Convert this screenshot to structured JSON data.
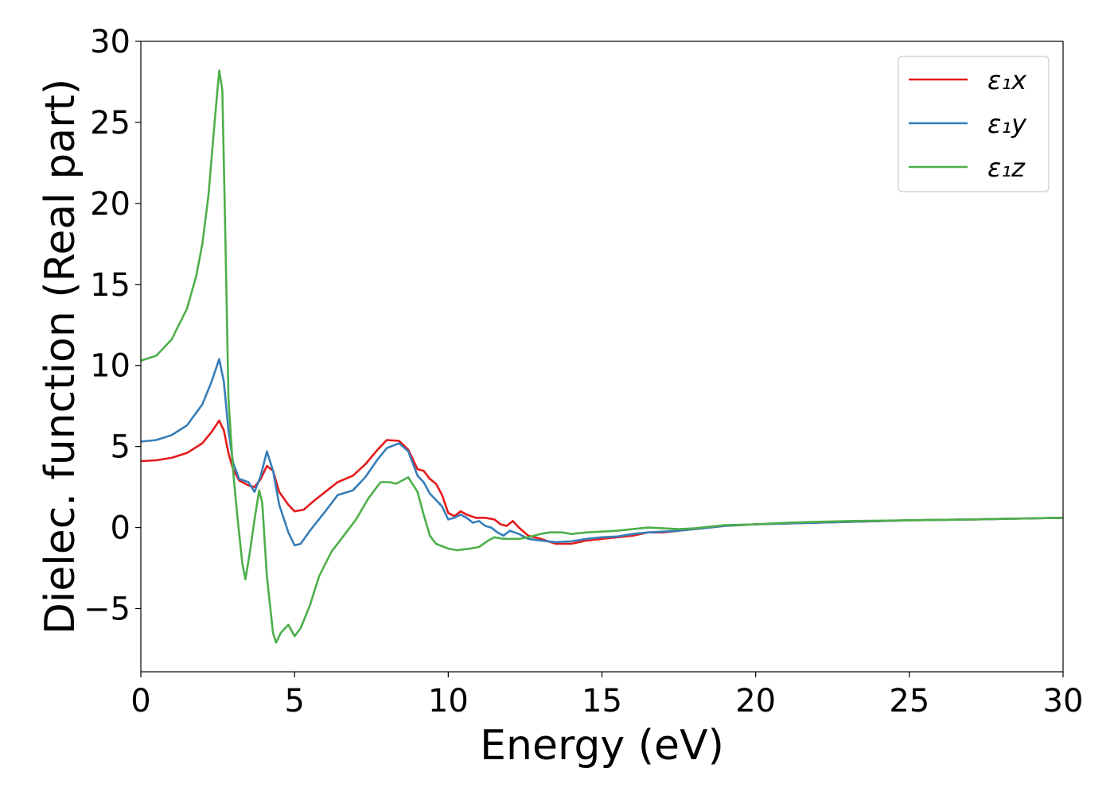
{
  "chart_data": {
    "type": "line",
    "title": "",
    "xlabel": "Energy (eV)",
    "ylabel": "Dielec. function (Real part)",
    "xlim": [
      0,
      30
    ],
    "ylim": [
      -8.9,
      30
    ],
    "x_ticks": [
      0,
      5,
      10,
      15,
      20,
      25,
      30
    ],
    "x_tick_labels": [
      "0",
      "5",
      "10",
      "15",
      "20",
      "25",
      "30"
    ],
    "y_ticks": [
      -5,
      0,
      5,
      10,
      15,
      20,
      25,
      30
    ],
    "y_tick_labels": [
      "−5",
      "0",
      "5",
      "10",
      "15",
      "20",
      "25",
      "30"
    ],
    "grid": false,
    "legend_position": "top-right",
    "series": [
      {
        "name": "ε₁x",
        "color": "#e41a1c",
        "points": [
          [
            0,
            4.1
          ],
          [
            0.5,
            4.15
          ],
          [
            1.0,
            4.3
          ],
          [
            1.5,
            4.6
          ],
          [
            2.0,
            5.2
          ],
          [
            2.3,
            5.9
          ],
          [
            2.55,
            6.6
          ],
          [
            2.7,
            6.0
          ],
          [
            2.85,
            4.6
          ],
          [
            3.0,
            3.6
          ],
          [
            3.2,
            2.9
          ],
          [
            3.5,
            2.6
          ],
          [
            3.7,
            2.5
          ],
          [
            3.9,
            3.0
          ],
          [
            4.1,
            3.8
          ],
          [
            4.3,
            3.5
          ],
          [
            4.5,
            2.2
          ],
          [
            4.8,
            1.4
          ],
          [
            5.0,
            1.0
          ],
          [
            5.3,
            1.1
          ],
          [
            5.6,
            1.6
          ],
          [
            6.0,
            2.2
          ],
          [
            6.4,
            2.8
          ],
          [
            6.9,
            3.2
          ],
          [
            7.3,
            3.9
          ],
          [
            7.7,
            4.8
          ],
          [
            8.0,
            5.4
          ],
          [
            8.4,
            5.35
          ],
          [
            8.7,
            4.8
          ],
          [
            9.0,
            3.6
          ],
          [
            9.2,
            3.5
          ],
          [
            9.4,
            3.0
          ],
          [
            9.6,
            2.7
          ],
          [
            9.8,
            2.0
          ],
          [
            10.0,
            0.9
          ],
          [
            10.2,
            0.7
          ],
          [
            10.4,
            1.0
          ],
          [
            10.6,
            0.8
          ],
          [
            10.9,
            0.6
          ],
          [
            11.2,
            0.6
          ],
          [
            11.5,
            0.5
          ],
          [
            11.7,
            0.2
          ],
          [
            11.9,
            0.1
          ],
          [
            12.1,
            0.4
          ],
          [
            12.3,
            0.0
          ],
          [
            12.6,
            -0.5
          ],
          [
            13.0,
            -0.7
          ],
          [
            13.5,
            -1.0
          ],
          [
            14.0,
            -1.0
          ],
          [
            14.5,
            -0.8
          ],
          [
            15.0,
            -0.7
          ],
          [
            15.5,
            -0.6
          ],
          [
            16.0,
            -0.5
          ],
          [
            16.5,
            -0.3
          ],
          [
            17.0,
            -0.3
          ],
          [
            17.5,
            -0.2
          ],
          [
            18.0,
            -0.1
          ],
          [
            18.5,
            0.0
          ],
          [
            19.0,
            0.1
          ],
          [
            20.0,
            0.2
          ],
          [
            21.0,
            0.25
          ],
          [
            22.0,
            0.3
          ],
          [
            23.0,
            0.35
          ],
          [
            25.0,
            0.45
          ],
          [
            27.0,
            0.5
          ],
          [
            30.0,
            0.6
          ]
        ]
      },
      {
        "name": "ε₁y",
        "color": "#377eb8",
        "points": [
          [
            0,
            5.3
          ],
          [
            0.5,
            5.4
          ],
          [
            1.0,
            5.7
          ],
          [
            1.5,
            6.3
          ],
          [
            2.0,
            7.6
          ],
          [
            2.3,
            9.0
          ],
          [
            2.55,
            10.4
          ],
          [
            2.7,
            9.0
          ],
          [
            2.85,
            6.0
          ],
          [
            3.0,
            4.0
          ],
          [
            3.2,
            3.0
          ],
          [
            3.5,
            2.8
          ],
          [
            3.7,
            2.2
          ],
          [
            3.9,
            3.2
          ],
          [
            4.1,
            4.7
          ],
          [
            4.3,
            3.5
          ],
          [
            4.5,
            1.4
          ],
          [
            4.8,
            -0.3
          ],
          [
            5.0,
            -1.1
          ],
          [
            5.2,
            -1.0
          ],
          [
            5.5,
            -0.2
          ],
          [
            6.0,
            1.0
          ],
          [
            6.4,
            2.0
          ],
          [
            6.9,
            2.3
          ],
          [
            7.3,
            3.1
          ],
          [
            7.7,
            4.2
          ],
          [
            8.0,
            4.9
          ],
          [
            8.4,
            5.2
          ],
          [
            8.7,
            4.7
          ],
          [
            9.0,
            3.2
          ],
          [
            9.2,
            2.8
          ],
          [
            9.4,
            2.1
          ],
          [
            9.6,
            1.7
          ],
          [
            9.8,
            1.3
          ],
          [
            10.0,
            0.5
          ],
          [
            10.2,
            0.6
          ],
          [
            10.4,
            0.8
          ],
          [
            10.6,
            0.6
          ],
          [
            10.8,
            0.3
          ],
          [
            11.0,
            0.4
          ],
          [
            11.2,
            0.1
          ],
          [
            11.4,
            0.0
          ],
          [
            11.6,
            -0.3
          ],
          [
            11.8,
            -0.5
          ],
          [
            12.0,
            -0.2
          ],
          [
            12.3,
            -0.4
          ],
          [
            12.6,
            -0.7
          ],
          [
            13.0,
            -0.8
          ],
          [
            13.5,
            -0.9
          ],
          [
            14.0,
            -0.85
          ],
          [
            14.5,
            -0.7
          ],
          [
            15.0,
            -0.6
          ],
          [
            15.5,
            -0.55
          ],
          [
            16.0,
            -0.4
          ],
          [
            16.5,
            -0.3
          ],
          [
            17.0,
            -0.25
          ],
          [
            17.5,
            -0.2
          ],
          [
            18.0,
            -0.1
          ],
          [
            18.5,
            0.0
          ],
          [
            19.0,
            0.1
          ],
          [
            20.0,
            0.2
          ],
          [
            21.0,
            0.25
          ],
          [
            22.0,
            0.3
          ],
          [
            23.0,
            0.35
          ],
          [
            25.0,
            0.45
          ],
          [
            27.0,
            0.5
          ],
          [
            30.0,
            0.6
          ]
        ]
      },
      {
        "name": "ε₁z",
        "color": "#4daf4a",
        "points": [
          [
            0,
            10.3
          ],
          [
            0.5,
            10.6
          ],
          [
            1.0,
            11.6
          ],
          [
            1.5,
            13.5
          ],
          [
            1.8,
            15.5
          ],
          [
            2.0,
            17.5
          ],
          [
            2.2,
            20.5
          ],
          [
            2.4,
            25.0
          ],
          [
            2.55,
            28.2
          ],
          [
            2.65,
            27.0
          ],
          [
            2.75,
            18.0
          ],
          [
            2.85,
            8.0
          ],
          [
            3.0,
            3.5
          ],
          [
            3.15,
            0.5
          ],
          [
            3.3,
            -2.2
          ],
          [
            3.4,
            -3.2
          ],
          [
            3.55,
            -1.5
          ],
          [
            3.7,
            0.5
          ],
          [
            3.85,
            2.3
          ],
          [
            3.95,
            1.5
          ],
          [
            4.1,
            -3.0
          ],
          [
            4.3,
            -6.5
          ],
          [
            4.4,
            -7.1
          ],
          [
            4.55,
            -6.5
          ],
          [
            4.8,
            -6.0
          ],
          [
            5.0,
            -6.7
          ],
          [
            5.2,
            -6.2
          ],
          [
            5.5,
            -4.8
          ],
          [
            5.8,
            -3.0
          ],
          [
            6.2,
            -1.5
          ],
          [
            6.6,
            -0.5
          ],
          [
            7.0,
            0.5
          ],
          [
            7.4,
            1.8
          ],
          [
            7.8,
            2.8
          ],
          [
            8.1,
            2.8
          ],
          [
            8.3,
            2.7
          ],
          [
            8.7,
            3.1
          ],
          [
            9.0,
            2.2
          ],
          [
            9.2,
            0.8
          ],
          [
            9.4,
            -0.5
          ],
          [
            9.6,
            -1.0
          ],
          [
            10.0,
            -1.3
          ],
          [
            10.3,
            -1.4
          ],
          [
            10.7,
            -1.3
          ],
          [
            11.0,
            -1.2
          ],
          [
            11.3,
            -0.8
          ],
          [
            11.5,
            -0.6
          ],
          [
            11.8,
            -0.7
          ],
          [
            12.3,
            -0.7
          ],
          [
            12.6,
            -0.6
          ],
          [
            13.0,
            -0.4
          ],
          [
            13.3,
            -0.3
          ],
          [
            13.7,
            -0.3
          ],
          [
            14.0,
            -0.4
          ],
          [
            14.5,
            -0.3
          ],
          [
            15.0,
            -0.25
          ],
          [
            15.5,
            -0.2
          ],
          [
            16.0,
            -0.1
          ],
          [
            16.5,
            0.0
          ],
          [
            17.0,
            -0.05
          ],
          [
            17.5,
            -0.1
          ],
          [
            18.0,
            -0.05
          ],
          [
            18.5,
            0.05
          ],
          [
            19.0,
            0.15
          ],
          [
            20.0,
            0.2
          ],
          [
            21.0,
            0.3
          ],
          [
            22.0,
            0.35
          ],
          [
            23.0,
            0.4
          ],
          [
            25.0,
            0.45
          ],
          [
            27.0,
            0.5
          ],
          [
            30.0,
            0.6
          ]
        ]
      }
    ]
  }
}
